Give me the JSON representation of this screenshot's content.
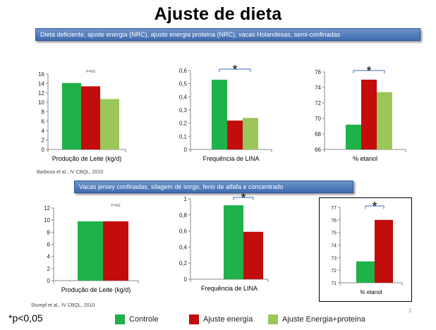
{
  "page": {
    "title": "Ajuste de dieta",
    "banner1": "Dieta deficiente, ajuste energia (NRC), ajuste energia proteina (NRC), vacas Holandesas, semi-confinadas",
    "banner2": "Vacas jersey confinadas, silagem de sorgo, feno de alfafa e concentrado",
    "citation1": "Barbosa et al., IV  CBQL, 2010",
    "citation2": "Stumpf et al., IV CBQL, 2010",
    "pnote": "*p<0,05",
    "page_number": "1",
    "legend": [
      {
        "label": "Controle",
        "color": "#1fb14a"
      },
      {
        "label": "Ajuste energia",
        "color": "#c30d0d"
      },
      {
        "label": "Ajuste Energia+proteina",
        "color": "#9bc65a"
      }
    ]
  },
  "chart_data": [
    {
      "type": "bar",
      "categories": [
        "Controle",
        "Ajuste energia",
        "Ajuste Energia+proteina"
      ],
      "values": [
        14.1,
        13.4,
        10.7
      ],
      "colors": [
        "#1fb14a",
        "#c30d0d",
        "#9bc65a"
      ],
      "xlabel": "Produção de Leite (kg/d)",
      "ylim": [
        0,
        16
      ],
      "yticks": [
        0,
        2,
        4,
        6,
        8,
        10,
        12,
        14,
        16
      ],
      "tick_labels": [
        "0",
        "2",
        "4",
        "6",
        "8",
        "10",
        "12",
        "14",
        "16"
      ],
      "annotation": "P=NS",
      "bracket_label": "",
      "bracket": false,
      "box": false
    },
    {
      "type": "bar",
      "categories": [
        "Controle",
        "Ajuste energia",
        "Ajuste Energia+proteina"
      ],
      "values": [
        0.53,
        0.22,
        0.24
      ],
      "colors": [
        "#1fb14a",
        "#c30d0d",
        "#9bc65a"
      ],
      "xlabel": "Frequência de LINA",
      "ylim": [
        0,
        0.6
      ],
      "yticks": [
        0,
        0.1,
        0.2,
        0.3,
        0.4,
        0.5,
        0.6
      ],
      "tick_labels": [
        "0",
        "0,1",
        "0,2",
        "0,3",
        "0,4",
        "0,5",
        "0,6"
      ],
      "annotation": "",
      "bracket_label": "*",
      "bracket": true,
      "box": false
    },
    {
      "type": "bar",
      "categories": [
        "Controle",
        "Ajuste energia",
        "Ajuste Energia+proteina"
      ],
      "values": [
        69.2,
        75.0,
        73.4
      ],
      "colors": [
        "#1fb14a",
        "#c30d0d",
        "#9bc65a"
      ],
      "xlabel": "% etanol",
      "ylim": [
        66,
        76
      ],
      "yticks": [
        66,
        68,
        70,
        72,
        74,
        76
      ],
      "tick_labels": [
        "66",
        "68",
        "70",
        "72",
        "74",
        "76"
      ],
      "annotation": "",
      "bracket_label": "*",
      "bracket": true,
      "box": false
    },
    {
      "type": "bar",
      "categories": [
        "Controle",
        "Ajuste energia"
      ],
      "values": [
        9.8,
        9.8
      ],
      "colors": [
        "#1fb14a",
        "#c30d0d"
      ],
      "xlabel": "Produção de Leite (kg/d)",
      "ylim": [
        0,
        12
      ],
      "yticks": [
        0,
        2,
        4,
        6,
        8,
        10,
        12
      ],
      "tick_labels": [
        "0",
        "2",
        "4",
        "6",
        "8",
        "10",
        "12"
      ],
      "annotation": "P=NS",
      "bracket_label": "",
      "bracket": false,
      "box": false
    },
    {
      "type": "bar",
      "categories": [
        "Controle",
        "Ajuste energia"
      ],
      "values": [
        0.92,
        0.59
      ],
      "colors": [
        "#1fb14a",
        "#c30d0d"
      ],
      "xlabel": "Frequência de LINA",
      "ylim": [
        0,
        1
      ],
      "yticks": [
        0,
        0.2,
        0.4,
        0.6,
        0.8,
        1
      ],
      "tick_labels": [
        "0",
        "0,2",
        "0,4",
        "0,6",
        "0,8",
        "1"
      ],
      "annotation": "",
      "bracket_label": "*",
      "bracket": true,
      "box": false
    },
    {
      "type": "bar",
      "categories": [
        "Controle",
        "Ajuste energia"
      ],
      "values": [
        72.7,
        76.0
      ],
      "colors": [
        "#1fb14a",
        "#c30d0d"
      ],
      "xlabel": "% etanol",
      "ylim": [
        71,
        77
      ],
      "yticks": [
        71,
        72,
        73,
        74,
        75,
        76,
        77
      ],
      "tick_labels": [
        "71",
        "72",
        "73",
        "74",
        "75",
        "76",
        "77"
      ],
      "annotation": "",
      "bracket_label": "*",
      "bracket": true,
      "box": true
    }
  ]
}
